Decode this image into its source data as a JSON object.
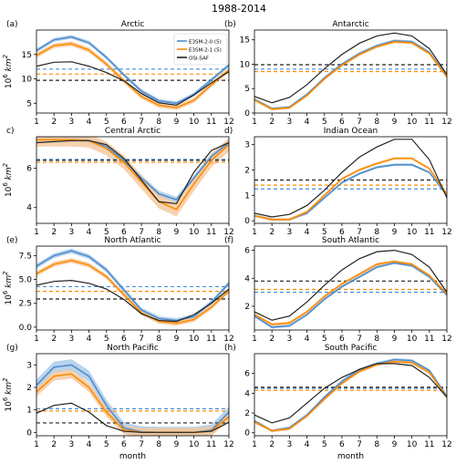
{
  "figure": {
    "title": "1988-2014"
  },
  "legend": [
    {
      "label": "E3SM-2-0 (5)",
      "color": "#4f8fcd"
    },
    {
      "label": "E3SM-2-1 (5)",
      "color": "#ff8c00"
    },
    {
      "label": "OSI-SAF",
      "color": "#222222"
    }
  ],
  "colors": {
    "e20": "#4f8fcd",
    "e21": "#ff8c00",
    "obs": "#222222",
    "e20_band": "#a9c8e8",
    "e21_band": "#f5c79a"
  },
  "chart_data": [
    {
      "type": "line",
      "panel": "(a)",
      "title": "Arctic",
      "ylabel": "10^6 km^2",
      "xlabel": "",
      "x": [
        1,
        2,
        3,
        4,
        5,
        6,
        7,
        8,
        9,
        10,
        11,
        12
      ],
      "xlim": [
        1,
        12
      ],
      "ylim": [
        3,
        20
      ],
      "yticks": [
        5,
        10,
        15
      ],
      "series": [
        {
          "name": "E3SM-2-0 (5)",
          "values": [
            15.8,
            18.0,
            18.6,
            17.4,
            14.4,
            10.8,
            7.5,
            5.5,
            5.0,
            6.8,
            9.8,
            12.8
          ],
          "spread": 0.4
        },
        {
          "name": "E3SM-2-1 (5)",
          "values": [
            14.8,
            16.8,
            17.2,
            15.9,
            13.0,
            9.6,
            6.4,
            4.6,
            4.1,
            5.6,
            8.8,
            11.8
          ],
          "spread": 0.5
        },
        {
          "name": "OSI-SAF",
          "values": [
            12.6,
            13.4,
            13.5,
            12.6,
            11.3,
            9.6,
            7.0,
            5.1,
            4.6,
            6.7,
            9.2,
            11.5
          ]
        }
      ],
      "means": [
        12.0,
        11.0,
        9.7
      ]
    },
    {
      "type": "line",
      "panel": "(b)",
      "title": "Antarctic",
      "ylabel": "",
      "xlabel": "",
      "x": [
        1,
        2,
        3,
        4,
        5,
        6,
        7,
        8,
        9,
        10,
        11,
        12
      ],
      "xlim": [
        1,
        12
      ],
      "ylim": [
        0,
        17
      ],
      "yticks": [
        0,
        5,
        10,
        15
      ],
      "series": [
        {
          "name": "E3SM-2-0 (5)",
          "values": [
            2.8,
            0.9,
            1.2,
            3.8,
            7.2,
            10.0,
            12.2,
            13.8,
            14.8,
            14.6,
            12.4,
            7.6
          ],
          "spread": 0.3
        },
        {
          "name": "E3SM-2-1 (5)",
          "values": [
            2.7,
            0.8,
            1.1,
            3.6,
            7.0,
            9.8,
            12.0,
            13.6,
            14.6,
            14.4,
            12.2,
            7.4
          ],
          "spread": 0.3
        },
        {
          "name": "OSI-SAF",
          "values": [
            3.4,
            2.1,
            3.2,
            5.8,
            9.1,
            12.0,
            14.3,
            15.8,
            16.4,
            15.8,
            13.2,
            7.9
          ]
        }
      ],
      "means": [
        9.0,
        8.5,
        9.9
      ]
    },
    {
      "type": "line",
      "panel": "c)",
      "title": "Central Arctic",
      "ylabel": "10^6 km^2",
      "xlabel": "",
      "x": [
        1,
        2,
        3,
        4,
        5,
        6,
        7,
        8,
        9,
        10,
        11,
        12
      ],
      "xlim": [
        1,
        12
      ],
      "ylim": [
        3.2,
        7.6
      ],
      "yticks": [
        4,
        6
      ],
      "series": [
        {
          "name": "E3SM-2-0 (5)",
          "values": [
            7.45,
            7.45,
            7.45,
            7.4,
            7.1,
            6.4,
            5.5,
            4.7,
            4.4,
            5.5,
            6.6,
            7.3
          ],
          "spread": 0.15
        },
        {
          "name": "E3SM-2-1 (5)",
          "values": [
            7.45,
            7.45,
            7.45,
            7.4,
            7.0,
            6.3,
            5.3,
            4.3,
            3.9,
            5.2,
            6.4,
            7.2
          ],
          "spread": 0.35
        },
        {
          "name": "OSI-SAF",
          "values": [
            7.3,
            7.35,
            7.4,
            7.4,
            7.2,
            6.5,
            5.4,
            4.3,
            4.2,
            5.8,
            6.9,
            7.3
          ]
        }
      ],
      "means": [
        6.45,
        6.3,
        6.4
      ]
    },
    {
      "type": "line",
      "panel": "d)",
      "title": "Indian Ocean",
      "ylabel": "",
      "xlabel": "",
      "x": [
        1,
        2,
        3,
        4,
        5,
        6,
        7,
        8,
        9,
        10,
        11,
        12
      ],
      "xlim": [
        1,
        12
      ],
      "ylim": [
        -0.1,
        3.3
      ],
      "yticks": [
        0,
        1,
        2,
        3
      ],
      "series": [
        {
          "name": "E3SM-2-0 (5)",
          "values": [
            0.2,
            0.05,
            0.05,
            0.3,
            0.9,
            1.5,
            1.85,
            2.1,
            2.2,
            2.2,
            1.9,
            1.0
          ],
          "spread": 0.05
        },
        {
          "name": "E3SM-2-1 (5)",
          "values": [
            0.2,
            0.05,
            0.05,
            0.35,
            1.0,
            1.65,
            2.0,
            2.25,
            2.45,
            2.45,
            2.05,
            1.05
          ],
          "spread": 0.05
        },
        {
          "name": "OSI-SAF",
          "values": [
            0.3,
            0.15,
            0.25,
            0.6,
            1.2,
            1.9,
            2.5,
            2.9,
            3.2,
            3.2,
            2.4,
            0.9
          ]
        }
      ],
      "means": [
        1.25,
        1.4,
        1.6
      ]
    },
    {
      "type": "line",
      "panel": "(e)",
      "title": "North Atlantic",
      "ylabel": "10^6 km^2",
      "xlabel": "",
      "x": [
        1,
        2,
        3,
        4,
        5,
        6,
        7,
        8,
        9,
        10,
        11,
        12
      ],
      "xlim": [
        1,
        12
      ],
      "ylim": [
        -0.3,
        8.5
      ],
      "yticks": [
        0.0,
        2.5,
        5.0,
        7.5
      ],
      "ytickLabels": [
        "0.0",
        "2.5",
        "5.0",
        "7.5"
      ],
      "series": [
        {
          "name": "E3SM-2-0 (5)",
          "values": [
            6.4,
            7.5,
            8.0,
            7.4,
            6.0,
            3.9,
            1.8,
            0.9,
            0.7,
            1.1,
            2.6,
            4.6
          ],
          "spread": 0.25
        },
        {
          "name": "E3SM-2-1 (5)",
          "values": [
            5.6,
            6.6,
            7.0,
            6.5,
            5.3,
            3.4,
            1.5,
            0.6,
            0.4,
            0.8,
            2.1,
            3.8
          ],
          "spread": 0.25
        },
        {
          "name": "OSI-SAF",
          "values": [
            4.4,
            4.8,
            4.9,
            4.6,
            4.0,
            2.9,
            1.4,
            0.7,
            0.6,
            1.3,
            2.5,
            4.0
          ]
        }
      ],
      "means": [
        4.25,
        3.75,
        2.95
      ]
    },
    {
      "type": "line",
      "panel": "(f)",
      "title": "South Atlantic",
      "ylabel": "",
      "xlabel": "",
      "x": [
        1,
        2,
        3,
        4,
        5,
        6,
        7,
        8,
        9,
        10,
        11,
        12
      ],
      "xlim": [
        1,
        12
      ],
      "ylim": [
        0.3,
        6.3
      ],
      "yticks": [
        2,
        4,
        6
      ],
      "series": [
        {
          "name": "E3SM-2-0 (5)",
          "values": [
            1.3,
            0.5,
            0.6,
            1.4,
            2.5,
            3.4,
            4.1,
            4.8,
            5.1,
            4.9,
            4.1,
            2.8
          ],
          "spread": 0.1
        },
        {
          "name": "E3SM-2-1 (5)",
          "values": [
            1.4,
            0.7,
            0.8,
            1.6,
            2.7,
            3.6,
            4.3,
            5.0,
            5.2,
            5.0,
            4.2,
            2.9
          ],
          "spread": 0.1
        },
        {
          "name": "OSI-SAF",
          "values": [
            1.6,
            1.0,
            1.3,
            2.3,
            3.5,
            4.6,
            5.4,
            5.9,
            6.0,
            5.7,
            4.8,
            3.0
          ]
        }
      ],
      "means": [
        3.0,
        3.2,
        3.8
      ]
    },
    {
      "type": "line",
      "panel": "(g)",
      "title": "North Pacific",
      "ylabel": "10^6 km^2",
      "xlabel": "month",
      "x": [
        1,
        2,
        3,
        4,
        5,
        6,
        7,
        8,
        9,
        10,
        11,
        12
      ],
      "xlim": [
        1,
        12
      ],
      "ylim": [
        -0.15,
        3.5
      ],
      "yticks": [
        0,
        1,
        2,
        3
      ],
      "series": [
        {
          "name": "E3SM-2-0 (5)",
          "values": [
            2.1,
            2.9,
            3.0,
            2.5,
            1.2,
            0.2,
            0.02,
            0.0,
            0.0,
            0.0,
            0.1,
            0.9
          ],
          "spread": 0.25
        },
        {
          "name": "E3SM-2-1 (5)",
          "values": [
            1.8,
            2.5,
            2.6,
            2.0,
            0.9,
            0.1,
            0.0,
            0.0,
            0.0,
            0.0,
            0.05,
            0.7
          ],
          "spread": 0.2
        },
        {
          "name": "OSI-SAF",
          "values": [
            0.85,
            1.2,
            1.3,
            0.9,
            0.3,
            0.05,
            0.0,
            0.0,
            0.0,
            0.0,
            0.05,
            0.45
          ]
        }
      ],
      "means": [
        1.05,
        0.95,
        0.42
      ]
    },
    {
      "type": "line",
      "panel": "(h)",
      "title": "South Pacific",
      "ylabel": "",
      "xlabel": "month",
      "x": [
        1,
        2,
        3,
        4,
        5,
        6,
        7,
        8,
        9,
        10,
        11,
        12
      ],
      "xlim": [
        1,
        12
      ],
      "ylim": [
        -0.3,
        8.0
      ],
      "yticks": [
        0,
        2,
        4,
        6
      ],
      "series": [
        {
          "name": "E3SM-2-0 (5)",
          "values": [
            1.2,
            0.2,
            0.5,
            1.8,
            3.6,
            5.2,
            6.4,
            7.0,
            7.4,
            7.3,
            6.3,
            3.7
          ],
          "spread": 0.15
        },
        {
          "name": "E3SM-2-1 (5)",
          "values": [
            1.1,
            0.2,
            0.4,
            1.7,
            3.4,
            5.0,
            6.2,
            6.9,
            7.2,
            7.1,
            6.1,
            3.6
          ],
          "spread": 0.15
        },
        {
          "name": "OSI-SAF",
          "values": [
            1.8,
            1.0,
            1.5,
            3.0,
            4.5,
            5.6,
            6.4,
            7.0,
            7.0,
            6.8,
            5.6,
            3.6
          ]
        }
      ],
      "means": [
        4.5,
        4.3,
        4.6
      ]
    }
  ]
}
